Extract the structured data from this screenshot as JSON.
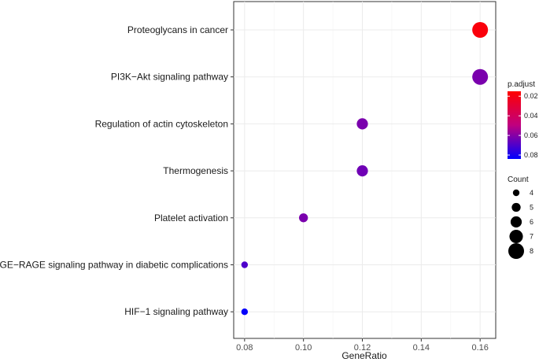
{
  "chart_data": {
    "type": "scatter",
    "subtype": "dotplot",
    "xlabel": "GeneRatio",
    "ylabel": "",
    "xlim": [
      0.0763,
      0.1653
    ],
    "x_ticks": [
      0.08,
      0.1,
      0.12,
      0.14,
      0.16
    ],
    "x_tick_labels": [
      "0.08",
      "0.10",
      "0.12",
      "0.14",
      "0.16"
    ],
    "categories": [
      "Proteoglycans in cancer",
      "PI3K−Akt signaling pathway",
      "Regulation of actin cytoskeleton",
      "Thermogenesis",
      "Platelet activation",
      "AGE−RAGE signaling pathway in diabetic complications",
      "HIF−1 signaling pathway"
    ],
    "points": [
      {
        "term": "Proteoglycans in cancer",
        "gene_ratio": 0.16,
        "count": 8,
        "p_adjust": 0.018
      },
      {
        "term": "PI3K−Akt signaling pathway",
        "gene_ratio": 0.16,
        "count": 8,
        "p_adjust": 0.062
      },
      {
        "term": "Regulation of actin cytoskeleton",
        "gene_ratio": 0.12,
        "count": 6,
        "p_adjust": 0.062
      },
      {
        "term": "Thermogenesis",
        "gene_ratio": 0.12,
        "count": 6,
        "p_adjust": 0.064
      },
      {
        "term": "Platelet activation",
        "gene_ratio": 0.1,
        "count": 5,
        "p_adjust": 0.062
      },
      {
        "term": "AGE−RAGE signaling pathway in diabetic complications",
        "gene_ratio": 0.08,
        "count": 4,
        "p_adjust": 0.07
      },
      {
        "term": "HIF−1 signaling pathway",
        "gene_ratio": 0.08,
        "count": 4,
        "p_adjust": 0.083
      }
    ],
    "color_legend": {
      "title": "p.adjust",
      "range": [
        0.015,
        0.084
      ],
      "ticks": [
        0.02,
        0.04,
        0.06,
        0.08
      ],
      "tick_labels": [
        "0.02",
        "0.04",
        "0.06",
        "0.08"
      ],
      "low_value_color": "#ff0000",
      "high_value_color": "#0000ff"
    },
    "size_legend": {
      "title": "Count",
      "values": [
        4,
        5,
        6,
        7,
        8
      ],
      "labels": [
        "4",
        "5",
        "6",
        "7",
        "8"
      ]
    },
    "grid": true,
    "legend_position": "right"
  }
}
